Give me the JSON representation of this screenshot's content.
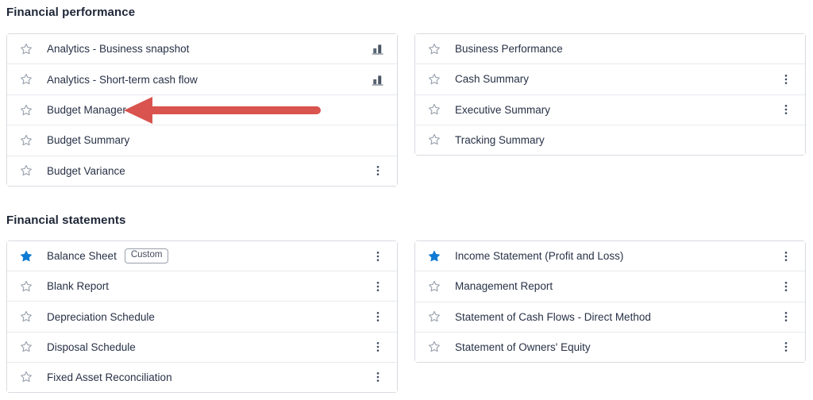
{
  "colors": {
    "favorite_star": "#0e7bd4",
    "annotation_arrow": "#d9534f",
    "text": "#273146",
    "card_border": "#d7dbe0",
    "row_divider": "#e7eaee",
    "star_outline": "#98a1ad"
  },
  "icons": {
    "favorite": "star-icon",
    "analytics": "bar-chart-icon",
    "menu": "kebab-menu-icon",
    "annotation": "left-arrow-icon"
  },
  "sections": [
    {
      "title": "Financial performance",
      "cards": [
        {
          "rows": [
            {
              "label": "Analytics - Business snapshot",
              "favorite": false,
              "trailing": "bar-chart"
            },
            {
              "label": "Analytics - Short-term cash flow",
              "favorite": false,
              "trailing": "bar-chart"
            },
            {
              "label": "Budget Manager",
              "favorite": false,
              "trailing": null,
              "annotation_arrow": true
            },
            {
              "label": "Budget Summary",
              "favorite": false,
              "trailing": null
            },
            {
              "label": "Budget Variance",
              "favorite": false,
              "trailing": "kebab-menu"
            }
          ]
        },
        {
          "rows": [
            {
              "label": "Business Performance",
              "favorite": false,
              "trailing": null
            },
            {
              "label": "Cash Summary",
              "favorite": false,
              "trailing": "kebab-menu"
            },
            {
              "label": "Executive Summary",
              "favorite": false,
              "trailing": "kebab-menu"
            },
            {
              "label": "Tracking Summary",
              "favorite": false,
              "trailing": null
            }
          ]
        }
      ]
    },
    {
      "title": "Financial statements",
      "cards": [
        {
          "rows": [
            {
              "label": "Balance Sheet",
              "favorite": true,
              "badge": "Custom",
              "trailing": "kebab-menu"
            },
            {
              "label": "Blank Report",
              "favorite": false,
              "trailing": "kebab-menu"
            },
            {
              "label": "Depreciation Schedule",
              "favorite": false,
              "trailing": "kebab-menu"
            },
            {
              "label": "Disposal Schedule",
              "favorite": false,
              "trailing": "kebab-menu"
            },
            {
              "label": "Fixed Asset Reconciliation",
              "favorite": false,
              "trailing": "kebab-menu"
            }
          ]
        },
        {
          "rows": [
            {
              "label": "Income Statement (Profit and Loss)",
              "favorite": true,
              "trailing": "kebab-menu"
            },
            {
              "label": "Management Report",
              "favorite": false,
              "trailing": "kebab-menu"
            },
            {
              "label": "Statement of Cash Flows - Direct Method",
              "favorite": false,
              "trailing": "kebab-menu"
            },
            {
              "label": "Statement of Owners' Equity",
              "favorite": false,
              "trailing": "kebab-menu"
            }
          ]
        }
      ]
    }
  ]
}
